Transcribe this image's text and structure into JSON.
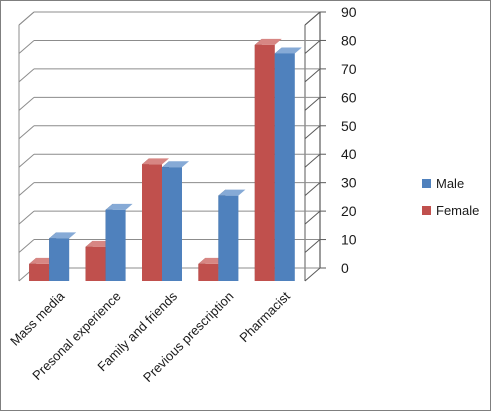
{
  "chart_data": {
    "type": "bar",
    "categories": [
      "Mass media",
      "Presonal experience",
      "Family and friends",
      "Previous prescription",
      "Pharmacist"
    ],
    "series": [
      {
        "name": "Female",
        "values": [
          6,
          12,
          41,
          6,
          83
        ]
      },
      {
        "name": "Male",
        "values": [
          15,
          25,
          40,
          30,
          80
        ]
      }
    ],
    "ylim": [
      0,
      90
    ],
    "yticks": [
      0,
      10,
      20,
      30,
      40,
      50,
      60,
      70,
      80,
      90
    ],
    "grid": true,
    "legend": {
      "position": "right",
      "order": [
        "Male",
        "Female"
      ]
    },
    "style": "3d-clustered-column",
    "colors": {
      "Female": {
        "front": "#c0504d",
        "side": "#7a2422",
        "top": "#d78683"
      },
      "Male": {
        "front": "#4f81bd",
        "side": "#203c60",
        "top": "#86aad6"
      },
      "grid": "#8c8c8c",
      "wall": "#595959"
    }
  }
}
